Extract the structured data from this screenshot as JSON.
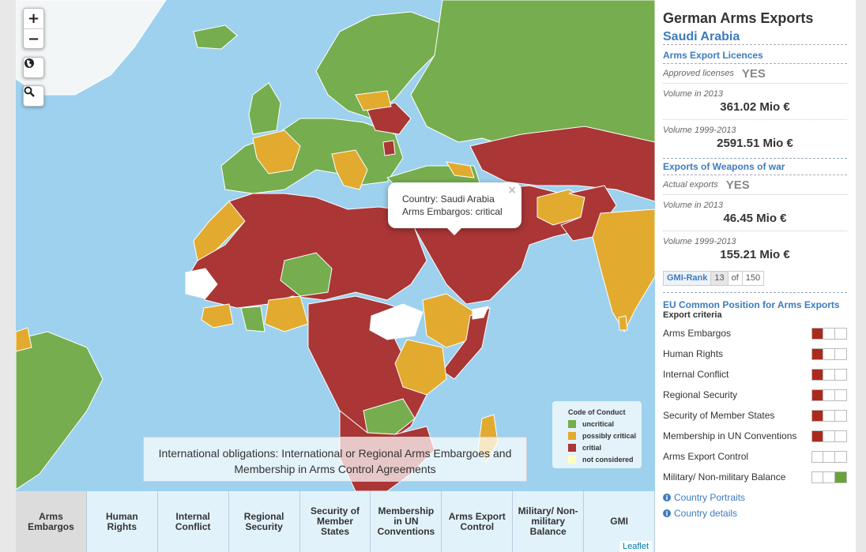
{
  "map": {
    "zoom_in": "+",
    "zoom_out": "−",
    "globe_icon": "globe-icon",
    "search_icon": "search-icon",
    "popup": {
      "line1": "Country: Saudi Arabia",
      "line2": "Arms Embargos: critical",
      "close": "×"
    },
    "legend": {
      "title": "Code of Conduct",
      "items": [
        {
          "label": "uncritical",
          "color": "#76ad4e"
        },
        {
          "label": "possibly critical",
          "color": "#e2ab2f"
        },
        {
          "label": "critial",
          "color": "#aa3636"
        },
        {
          "label": "not considered",
          "color": "#ffffc0"
        }
      ]
    },
    "overlay_text": "International obligations: International or Regional Arms Embargoes and Membership in Arms Control Agreements",
    "attribution": "Leaflet",
    "colors": {
      "green": "#76ad4e",
      "orange": "#e2ab2f",
      "red": "#aa3636",
      "white": "#ffffff",
      "sea": "#9dd1ee"
    }
  },
  "tabs": [
    {
      "label": "Arms Embargos",
      "active": true
    },
    {
      "label": "Human Rights",
      "active": false
    },
    {
      "label": "Internal Conflict",
      "active": false
    },
    {
      "label": "Regional Security",
      "active": false
    },
    {
      "label": "Security of Member States",
      "active": false
    },
    {
      "label": "Membership in UN Conventions",
      "active": false
    },
    {
      "label": "Arms Export Control",
      "active": false
    },
    {
      "label": "Military/ Non-military Balance",
      "active": false
    },
    {
      "label": "GMI",
      "active": false
    }
  ],
  "panel": {
    "title": "German Arms Exports",
    "country": "Saudi Arabia",
    "licences": {
      "heading": "Arms Export Licences",
      "approved_label": "Approved licenses",
      "approved_value": "YES",
      "vol2013_label": "Volume in 2013",
      "vol2013_value": "361.02 Mio €",
      "vol9913_label": "Volume 1999-2013",
      "vol9913_value": "2591.51 Mio €"
    },
    "weapons": {
      "heading": "Exports of Weapons of war",
      "actual_label": "Actual exports",
      "actual_value": "YES",
      "vol2013_label": "Volume in 2013",
      "vol2013_value": "46.45 Mio €",
      "vol9913_label": "Volume 1999-2013",
      "vol9913_value": "155.21 Mio €"
    },
    "gmi": {
      "label": "GMI-Rank",
      "rank": "13",
      "of": "of",
      "total": "150"
    },
    "eu": {
      "heading": "EU Common Position for Arms Exports",
      "subheading": "Export criteria",
      "criteria": [
        {
          "label": "Arms Embargos",
          "level": 1,
          "color": "#aa2a1e"
        },
        {
          "label": "Human Rights",
          "level": 1,
          "color": "#aa2a1e"
        },
        {
          "label": "Internal Conflict",
          "level": 1,
          "color": "#aa2a1e"
        },
        {
          "label": "Regional Security",
          "level": 1,
          "color": "#aa2a1e"
        },
        {
          "label": "Security of Member States",
          "level": 1,
          "color": "#aa2a1e"
        },
        {
          "label": "Membership in UN Conventions",
          "level": 1,
          "color": "#aa2a1e"
        },
        {
          "label": "Arms Export Control",
          "level": 0,
          "color": "#ffffff"
        },
        {
          "label": "Military/ Non-military Balance",
          "level": 3,
          "color": "#6aa23a"
        }
      ]
    },
    "links": [
      {
        "label": "Country Portraits",
        "icon": "info-icon"
      },
      {
        "label": "Country details",
        "icon": "info-icon"
      }
    ]
  }
}
